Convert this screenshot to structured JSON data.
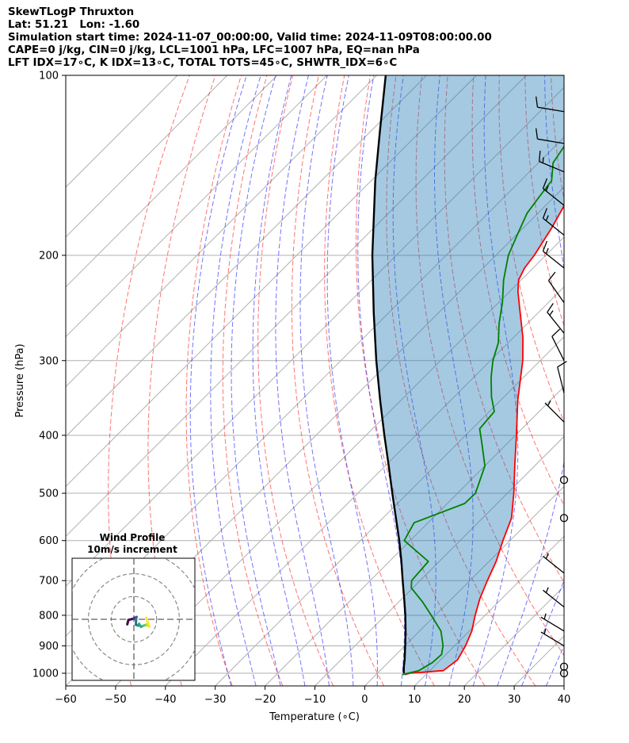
{
  "header": {
    "line1": "SkewTLogP Thruxton",
    "line2": "Lat: 51.21   Lon: -1.60",
    "line3": "Simulation start time: 2024-11-07_00:00:00, Valid time: 2024-11-09T08:00:00.00",
    "line4": "CAPE=0 j/kg, CIN=0 j/kg, LCL=1001 hPa, LFC=1007 hPa, EQ=nan hPa",
    "line5": "LFT IDX=17∘C, K IDX=13∘C, TOTAL TOTS=45∘C, SHWTR_IDX=6∘C"
  },
  "chart_data": {
    "type": "line",
    "xlabel": "Temperature (∘C)",
    "ylabel": "Pressure (hPa)",
    "xlim": [
      -60,
      40
    ],
    "ylim": [
      1050,
      100
    ],
    "y_scale": "log",
    "grid": true,
    "x_ticks": [
      -60,
      -50,
      -40,
      -30,
      -20,
      -10,
      0,
      10,
      20,
      30,
      40
    ],
    "y_ticks": [
      100,
      200,
      300,
      400,
      500,
      600,
      700,
      800,
      900,
      1000
    ],
    "y_tick_labels": [
      "100",
      "200",
      "300",
      "400",
      "500",
      "600",
      "700",
      "800",
      "900",
      "1000"
    ],
    "skew_deg": 45,
    "series": [
      {
        "key": "temperature",
        "color": "#ff0000",
        "points": [
          [
            1005,
            5.8
          ],
          [
            1000,
            6.5
          ],
          [
            990,
            12.7
          ],
          [
            950,
            13.4
          ],
          [
            900,
            12.2
          ],
          [
            850,
            10.5
          ],
          [
            800,
            8.0
          ],
          [
            750,
            5.6
          ],
          [
            700,
            3.5
          ],
          [
            650,
            1.4
          ],
          [
            600,
            -1.4
          ],
          [
            550,
            -4.2
          ],
          [
            500,
            -8.7
          ],
          [
            450,
            -14.0
          ],
          [
            400,
            -19.8
          ],
          [
            350,
            -26.5
          ],
          [
            300,
            -33.5
          ],
          [
            275,
            -38.0
          ],
          [
            250,
            -43.5
          ],
          [
            230,
            -48.3
          ],
          [
            220,
            -50.5
          ],
          [
            210,
            -51.7
          ],
          [
            200,
            -52.3
          ],
          [
            180,
            -54.3
          ],
          [
            160,
            -57.0
          ],
          [
            140,
            -60.2
          ],
          [
            120,
            -64.0
          ],
          [
            110,
            -66.3
          ],
          [
            100,
            -69.2
          ]
        ]
      },
      {
        "key": "dewpoint",
        "color": "#008000",
        "points": [
          [
            1005,
            5.3
          ],
          [
            990,
            7.8
          ],
          [
            960,
            8.9
          ],
          [
            930,
            9.1
          ],
          [
            900,
            7.7
          ],
          [
            850,
            4.3
          ],
          [
            800,
            -0.8
          ],
          [
            760,
            -5.2
          ],
          [
            720,
            -10.3
          ],
          [
            700,
            -11.7
          ],
          [
            650,
            -12.2
          ],
          [
            600,
            -21.2
          ],
          [
            560,
            -22.8
          ],
          [
            520,
            -16.5
          ],
          [
            500,
            -16.4
          ],
          [
            450,
            -20.0
          ],
          [
            410,
            -25.5
          ],
          [
            390,
            -28.5
          ],
          [
            365,
            -29.0
          ],
          [
            345,
            -32.5
          ],
          [
            320,
            -36.5
          ],
          [
            300,
            -39.5
          ],
          [
            280,
            -42.0
          ],
          [
            260,
            -45.7
          ],
          [
            240,
            -49.2
          ],
          [
            220,
            -53.5
          ],
          [
            200,
            -57.5
          ],
          [
            185,
            -59.8
          ],
          [
            170,
            -62.2
          ],
          [
            160,
            -63.0
          ],
          [
            150,
            -63.8
          ],
          [
            140,
            -67.1
          ],
          [
            125,
            -69.0
          ],
          [
            110,
            -71.2
          ],
          [
            100,
            -72.5
          ]
        ]
      },
      {
        "key": "parcel",
        "color": "#000000",
        "points": [
          [
            1000,
            5.3
          ],
          [
            975,
            4.0
          ],
          [
            950,
            2.8
          ],
          [
            900,
            0.1
          ],
          [
            850,
            -2.8
          ],
          [
            800,
            -6.0
          ],
          [
            750,
            -9.6
          ],
          [
            700,
            -13.5
          ],
          [
            650,
            -17.6
          ],
          [
            600,
            -22.2
          ],
          [
            550,
            -27.4
          ],
          [
            500,
            -33.1
          ],
          [
            450,
            -39.3
          ],
          [
            400,
            -46.3
          ],
          [
            350,
            -54.1
          ],
          [
            300,
            -62.9
          ],
          [
            250,
            -72.9
          ],
          [
            200,
            -84.8
          ],
          [
            150,
            -99.2
          ],
          [
            125,
            -107.8
          ],
          [
            100,
            -118.2
          ]
        ]
      }
    ],
    "barbs": [
      {
        "p": 1000,
        "u": 0,
        "v": 0
      },
      {
        "p": 975,
        "u": 0,
        "v": 0
      },
      {
        "p": 900,
        "u": -5,
        "v": 3
      },
      {
        "p": 850,
        "u": -5,
        "v": 3
      },
      {
        "p": 775,
        "u": -5,
        "v": 4
      },
      {
        "p": 680,
        "u": -5,
        "v": 4
      },
      {
        "p": 550,
        "u": 0,
        "v": 0
      },
      {
        "p": 475,
        "u": 0,
        "v": 0
      },
      {
        "p": 380,
        "u": -5,
        "v": 5
      },
      {
        "p": 340,
        "u": -3,
        "v": 12
      },
      {
        "p": 300,
        "u": -5,
        "v": 10
      },
      {
        "p": 270,
        "u": -8,
        "v": 10
      },
      {
        "p": 240,
        "u": -7,
        "v": 10
      },
      {
        "p": 210,
        "u": -10,
        "v": 8
      },
      {
        "p": 185,
        "u": -10,
        "v": 8
      },
      {
        "p": 165,
        "u": -10,
        "v": 8
      },
      {
        "p": 145,
        "u": -12,
        "v": 5
      },
      {
        "p": 130,
        "u": -12,
        "v": 2
      },
      {
        "p": 115,
        "u": -12,
        "v": 2
      }
    ],
    "hodograph": {
      "title1": "Wind Profile",
      "title2": "10m/s increment",
      "range": 30,
      "rings": [
        10,
        20,
        30
      ],
      "points": [
        [
          -2.9,
          -2.2
        ],
        [
          -2.4,
          -0.3
        ],
        [
          -0.2,
          0.3
        ],
        [
          0.3,
          0.6
        ],
        [
          1.2,
          1.0
        ],
        [
          1.0,
          0.8
        ],
        [
          0.9,
          -2.4
        ],
        [
          1.9,
          -2.8
        ],
        [
          2.3,
          -2.0
        ],
        [
          3.1,
          -3.3
        ],
        [
          4.2,
          -2.8
        ],
        [
          5.6,
          -2.3
        ],
        [
          6.2,
          -2.8
        ],
        [
          6.8,
          -3.2
        ],
        [
          5.4,
          0.7
        ]
      ]
    }
  }
}
